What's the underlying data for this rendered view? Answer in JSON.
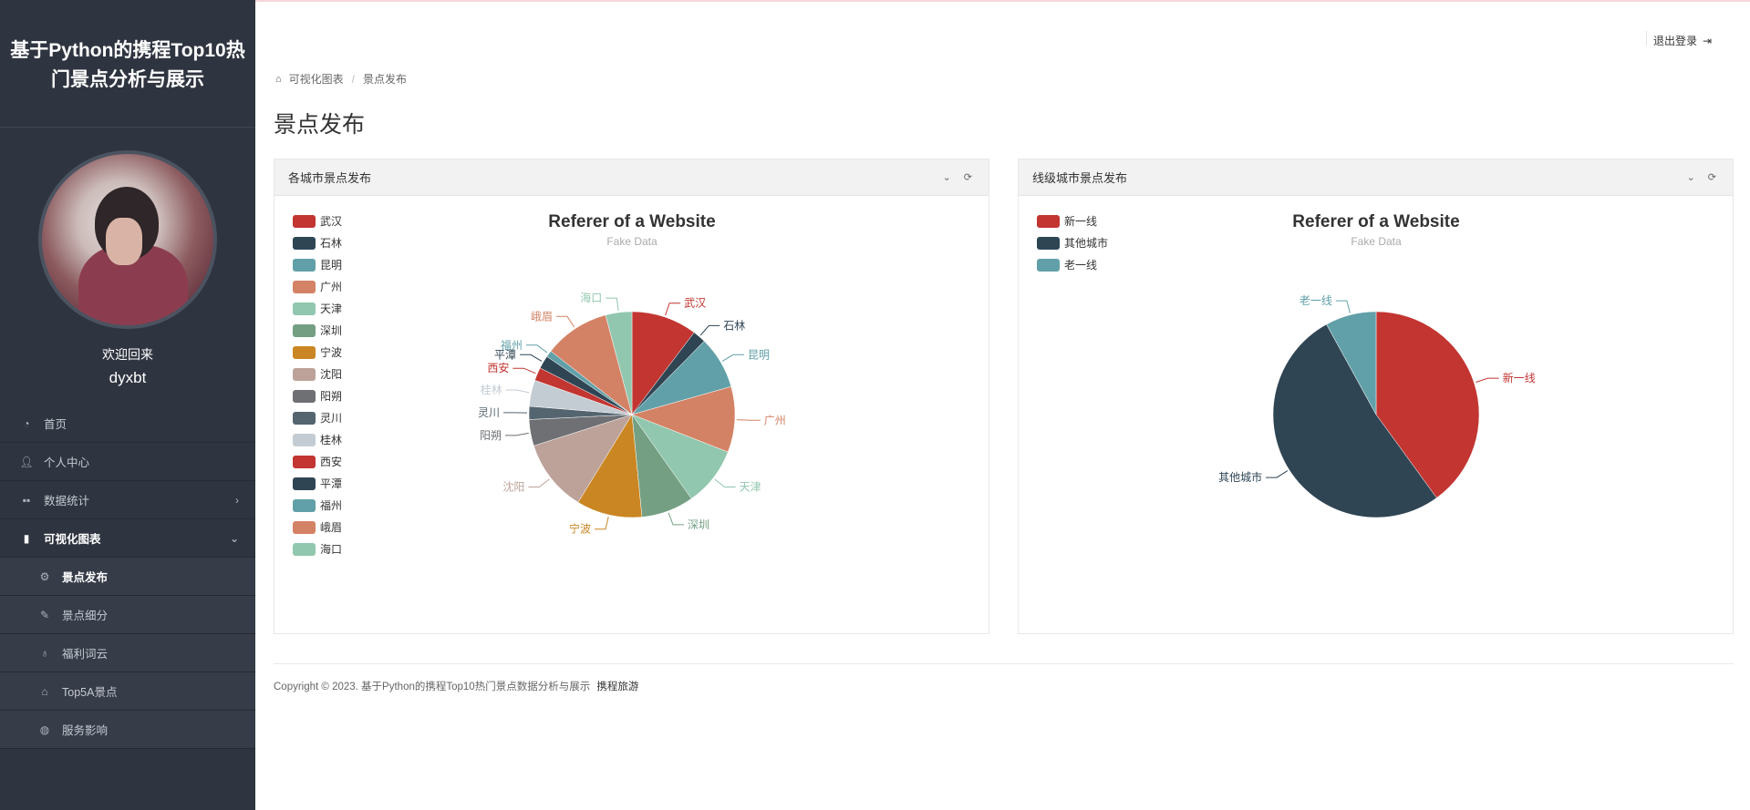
{
  "app": {
    "title": "基于Python的携程Top10热门景点分析与展示"
  },
  "profile": {
    "welcome": "欢迎回来",
    "username": "dyxbt"
  },
  "menu": {
    "items": [
      {
        "label": "首页",
        "icon": "dashboard-icon"
      },
      {
        "label": "个人中心",
        "icon": "user-icon"
      },
      {
        "label": "数据统计",
        "icon": "grid-icon"
      },
      {
        "label": "可视化图表",
        "icon": "bar-chart-icon"
      }
    ],
    "submenu": [
      {
        "label": "景点发布",
        "icon": "gear-icon"
      },
      {
        "label": "景点细分",
        "icon": "feather-icon"
      },
      {
        "label": "福利词云",
        "icon": "lightbulb-icon"
      },
      {
        "label": "Top5A景点",
        "icon": "graduation-cap-icon"
      },
      {
        "label": "服务影响",
        "icon": "globe-icon"
      }
    ]
  },
  "header": {
    "logout": "退出登录"
  },
  "breadcrumb": {
    "items": [
      "可视化图表",
      "景点发布"
    ]
  },
  "page": {
    "title": "景点发布"
  },
  "panels": [
    {
      "title": "各城市景点发布"
    },
    {
      "title": "线级城市景点发布"
    }
  ],
  "chart_data": [
    {
      "type": "pie",
      "title": "Referer of a Website",
      "subtitle": "Fake Data",
      "legend_position": "left",
      "categories": [
        "武汉",
        "石林",
        "昆明",
        "广州",
        "天津",
        "深圳",
        "宁波",
        "沈阳",
        "阳朔",
        "灵川",
        "桂林",
        "西安",
        "平潭",
        "福州",
        "峨眉",
        "海口"
      ],
      "values": [
        10,
        2,
        8,
        10,
        9,
        8,
        10,
        11,
        4,
        2,
        4,
        2,
        2,
        1,
        10,
        4
      ],
      "colors": [
        "#c23531",
        "#2f4554",
        "#61a0a8",
        "#d48265",
        "#91c7ae",
        "#749f83",
        "#ca8622",
        "#bda29a",
        "#6e7074",
        "#546570",
        "#c4ccd3",
        "#c23531",
        "#2f4554",
        "#61a0a8",
        "#d48265",
        "#91c7ae"
      ]
    },
    {
      "type": "pie",
      "title": "Referer of a Website",
      "subtitle": "Fake Data",
      "legend_position": "left",
      "categories": [
        "新一线",
        "其他城市",
        "老一线"
      ],
      "values": [
        40,
        52,
        8
      ],
      "colors": [
        "#c23531",
        "#2f4554",
        "#61a0a8"
      ]
    }
  ],
  "footer": {
    "text": "Copyright © 2023. 基于Python的携程Top10热门景点数据分析与展示",
    "brand": "携程旅游"
  }
}
